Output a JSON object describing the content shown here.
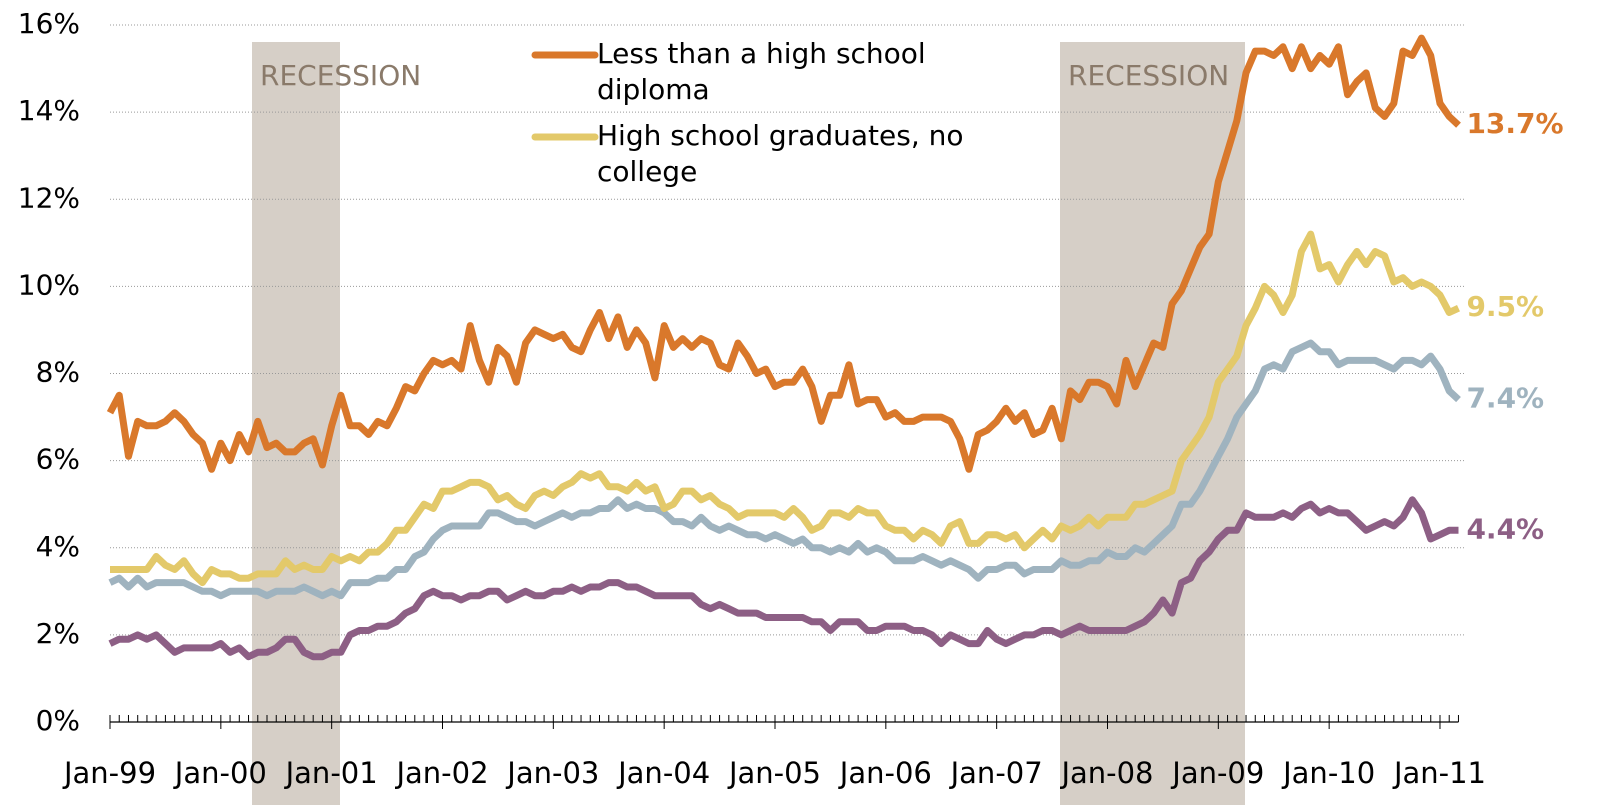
{
  "chart_data": {
    "type": "line",
    "categories": [
      "Jan-99",
      null,
      null,
      null,
      null,
      null,
      null,
      null,
      null,
      null,
      null,
      null,
      "Jan-00",
      null,
      null,
      null,
      null,
      null,
      null,
      null,
      null,
      null,
      null,
      null,
      "Jan-01",
      null,
      null,
      null,
      null,
      null,
      null,
      null,
      null,
      null,
      null,
      null,
      "Jan-02",
      null,
      null,
      null,
      null,
      null,
      null,
      null,
      null,
      null,
      null,
      null,
      "Jan-03",
      null,
      null,
      null,
      null,
      null,
      null,
      null,
      null,
      null,
      null,
      null,
      "Jan-04",
      null,
      null,
      null,
      null,
      null,
      null,
      null,
      null,
      null,
      null,
      null,
      "Jan-05",
      null,
      null,
      null,
      null,
      null,
      null,
      null,
      null,
      null,
      null,
      null,
      "Jan-06",
      null,
      null,
      null,
      null,
      null,
      null,
      null,
      null,
      null,
      null,
      null,
      "Jan-07",
      null,
      null,
      null,
      null,
      null,
      null,
      null,
      null,
      null,
      null,
      null,
      "Jan-08",
      null,
      null,
      null,
      null,
      null,
      null,
      null,
      null,
      null,
      null,
      null,
      "Jan-09",
      null,
      null,
      null,
      null,
      null,
      null,
      null,
      null,
      null,
      null,
      null,
      "Jan-10",
      null,
      null,
      null,
      null,
      null,
      null,
      null,
      null,
      null,
      null,
      null,
      "Jan-11",
      null,
      null
    ],
    "series": [
      {
        "name": "Less than a high school diploma",
        "color": "#d9782b",
        "end_label": "13.7%",
        "values": [
          7.1,
          7.5,
          6.1,
          6.9,
          6.8,
          6.8,
          6.9,
          7.1,
          6.9,
          6.6,
          6.4,
          5.8,
          6.4,
          6.0,
          6.6,
          6.2,
          6.9,
          6.3,
          6.4,
          6.2,
          6.2,
          6.4,
          6.5,
          5.9,
          6.8,
          7.5,
          6.8,
          6.8,
          6.6,
          6.9,
          6.8,
          7.2,
          7.7,
          7.6,
          8.0,
          8.3,
          8.2,
          8.3,
          8.1,
          9.1,
          8.3,
          7.8,
          8.6,
          8.4,
          7.8,
          8.7,
          9.0,
          8.9,
          8.8,
          8.9,
          8.6,
          8.5,
          9.0,
          9.4,
          8.8,
          9.3,
          8.6,
          9.0,
          8.7,
          7.9,
          9.1,
          8.6,
          8.8,
          8.6,
          8.8,
          8.7,
          8.2,
          8.1,
          8.7,
          8.4,
          8.0,
          8.1,
          7.7,
          7.8,
          7.8,
          8.1,
          7.7,
          6.9,
          7.5,
          7.5,
          8.2,
          7.3,
          7.4,
          7.4,
          7.0,
          7.1,
          6.9,
          6.9,
          7.0,
          7.0,
          7.0,
          6.9,
          6.5,
          5.8,
          6.6,
          6.7,
          6.9,
          7.2,
          6.9,
          7.1,
          6.6,
          6.7,
          7.2,
          6.5,
          7.6,
          7.4,
          7.8,
          7.8,
          7.7,
          7.3,
          8.3,
          7.7,
          8.2,
          8.7,
          8.6,
          9.6,
          9.9,
          10.4,
          10.9,
          11.2,
          12.4,
          13.1,
          13.8,
          14.9,
          15.4,
          15.4,
          15.3,
          15.5,
          15.0,
          15.5,
          15.0,
          15.3,
          15.1,
          15.5,
          14.4,
          14.7,
          14.9,
          14.1,
          13.9,
          14.2,
          15.4,
          15.3,
          15.7,
          15.3,
          14.2,
          13.9,
          13.7
        ]
      },
      {
        "name": "High school graduates, no college",
        "color": "#e3c96a",
        "end_label": "9.5%",
        "values": [
          3.5,
          3.5,
          3.5,
          3.5,
          3.5,
          3.8,
          3.6,
          3.5,
          3.7,
          3.4,
          3.2,
          3.5,
          3.4,
          3.4,
          3.3,
          3.3,
          3.4,
          3.4,
          3.4,
          3.7,
          3.5,
          3.6,
          3.5,
          3.5,
          3.8,
          3.7,
          3.8,
          3.7,
          3.9,
          3.9,
          4.1,
          4.4,
          4.4,
          4.7,
          5.0,
          4.9,
          5.3,
          5.3,
          5.4,
          5.5,
          5.5,
          5.4,
          5.1,
          5.2,
          5.0,
          4.9,
          5.2,
          5.3,
          5.2,
          5.4,
          5.5,
          5.7,
          5.6,
          5.7,
          5.4,
          5.4,
          5.3,
          5.5,
          5.3,
          5.4,
          4.9,
          5.0,
          5.3,
          5.3,
          5.1,
          5.2,
          5.0,
          4.9,
          4.7,
          4.8,
          4.8,
          4.8,
          4.8,
          4.7,
          4.9,
          4.7,
          4.4,
          4.5,
          4.8,
          4.8,
          4.7,
          4.9,
          4.8,
          4.8,
          4.5,
          4.4,
          4.4,
          4.2,
          4.4,
          4.3,
          4.1,
          4.5,
          4.6,
          4.1,
          4.1,
          4.3,
          4.3,
          4.2,
          4.3,
          4.0,
          4.2,
          4.4,
          4.2,
          4.5,
          4.4,
          4.5,
          4.7,
          4.5,
          4.7,
          4.7,
          4.7,
          5.0,
          5.0,
          5.1,
          5.2,
          5.3,
          6.0,
          6.3,
          6.6,
          7.0,
          7.8,
          8.1,
          8.4,
          9.1,
          9.5,
          10.0,
          9.8,
          9.4,
          9.8,
          10.8,
          11.2,
          10.4,
          10.5,
          10.1,
          10.5,
          10.8,
          10.5,
          10.8,
          10.7,
          10.1,
          10.2,
          10.0,
          10.1,
          10.0,
          9.8,
          9.4,
          9.5
        ]
      },
      {
        "color": "#9fb3bf",
        "end_label": "7.4%",
        "values": [
          3.2,
          3.3,
          3.1,
          3.3,
          3.1,
          3.2,
          3.2,
          3.2,
          3.2,
          3.1,
          3.0,
          3.0,
          2.9,
          3.0,
          3.0,
          3.0,
          3.0,
          2.9,
          3.0,
          3.0,
          3.0,
          3.1,
          3.0,
          2.9,
          3.0,
          2.9,
          3.2,
          3.2,
          3.2,
          3.3,
          3.3,
          3.5,
          3.5,
          3.8,
          3.9,
          4.2,
          4.4,
          4.5,
          4.5,
          4.5,
          4.5,
          4.8,
          4.8,
          4.7,
          4.6,
          4.6,
          4.5,
          4.6,
          4.7,
          4.8,
          4.7,
          4.8,
          4.8,
          4.9,
          4.9,
          5.1,
          4.9,
          5.0,
          4.9,
          4.9,
          4.8,
          4.6,
          4.6,
          4.5,
          4.7,
          4.5,
          4.4,
          4.5,
          4.4,
          4.3,
          4.3,
          4.2,
          4.3,
          4.2,
          4.1,
          4.2,
          4.0,
          4.0,
          3.9,
          4.0,
          3.9,
          4.1,
          3.9,
          4.0,
          3.9,
          3.7,
          3.7,
          3.7,
          3.8,
          3.7,
          3.6,
          3.7,
          3.6,
          3.5,
          3.3,
          3.5,
          3.5,
          3.6,
          3.6,
          3.4,
          3.5,
          3.5,
          3.5,
          3.7,
          3.6,
          3.6,
          3.7,
          3.7,
          3.9,
          3.8,
          3.8,
          4.0,
          3.9,
          4.1,
          4.3,
          4.5,
          5.0,
          5.0,
          5.3,
          5.7,
          6.1,
          6.5,
          7.0,
          7.3,
          7.6,
          8.1,
          8.2,
          8.1,
          8.5,
          8.6,
          8.7,
          8.5,
          8.5,
          8.2,
          8.3,
          8.3,
          8.3,
          8.3,
          8.2,
          8.1,
          8.3,
          8.3,
          8.2,
          8.4,
          8.1,
          7.6,
          7.4
        ]
      },
      {
        "color": "#8d5f85",
        "end_label": "4.4%",
        "values": [
          1.8,
          1.9,
          1.9,
          2.0,
          1.9,
          2.0,
          1.8,
          1.6,
          1.7,
          1.7,
          1.7,
          1.7,
          1.8,
          1.6,
          1.7,
          1.5,
          1.6,
          1.6,
          1.7,
          1.9,
          1.9,
          1.6,
          1.5,
          1.5,
          1.6,
          1.6,
          2.0,
          2.1,
          2.1,
          2.2,
          2.2,
          2.3,
          2.5,
          2.6,
          2.9,
          3.0,
          2.9,
          2.9,
          2.8,
          2.9,
          2.9,
          3.0,
          3.0,
          2.8,
          2.9,
          3.0,
          2.9,
          2.9,
          3.0,
          3.0,
          3.1,
          3.0,
          3.1,
          3.1,
          3.2,
          3.2,
          3.1,
          3.1,
          3.0,
          2.9,
          2.9,
          2.9,
          2.9,
          2.9,
          2.7,
          2.6,
          2.7,
          2.6,
          2.5,
          2.5,
          2.5,
          2.4,
          2.4,
          2.4,
          2.4,
          2.4,
          2.3,
          2.3,
          2.1,
          2.3,
          2.3,
          2.3,
          2.1,
          2.1,
          2.2,
          2.2,
          2.2,
          2.1,
          2.1,
          2.0,
          1.8,
          2.0,
          1.9,
          1.8,
          1.8,
          2.1,
          1.9,
          1.8,
          1.9,
          2.0,
          2.0,
          2.1,
          2.1,
          2.0,
          2.1,
          2.2,
          2.1,
          2.1,
          2.1,
          2.1,
          2.1,
          2.2,
          2.3,
          2.5,
          2.8,
          2.5,
          3.2,
          3.3,
          3.7,
          3.9,
          4.2,
          4.4,
          4.4,
          4.8,
          4.7,
          4.7,
          4.7,
          4.8,
          4.7,
          4.9,
          5.0,
          4.8,
          4.9,
          4.8,
          4.8,
          4.6,
          4.4,
          4.5,
          4.6,
          4.5,
          4.7,
          5.1,
          4.8,
          4.2,
          4.3,
          4.4,
          4.4
        ]
      }
    ],
    "annotations": [
      "RECESSION",
      "RECESSION"
    ],
    "ylim": [
      0,
      16
    ],
    "yticks": [
      {
        "value": 0,
        "label": "0%"
      },
      {
        "value": 2,
        "label": "2%"
      },
      {
        "value": 4,
        "label": "4%"
      },
      {
        "value": 6,
        "label": "6%"
      },
      {
        "value": 8,
        "label": "8%"
      },
      {
        "value": 10,
        "label": "10%"
      },
      {
        "value": 12,
        "label": "12%"
      },
      {
        "value": 14,
        "label": "14%"
      },
      {
        "value": 16,
        "label": "16%"
      }
    ],
    "grid": true
  }
}
